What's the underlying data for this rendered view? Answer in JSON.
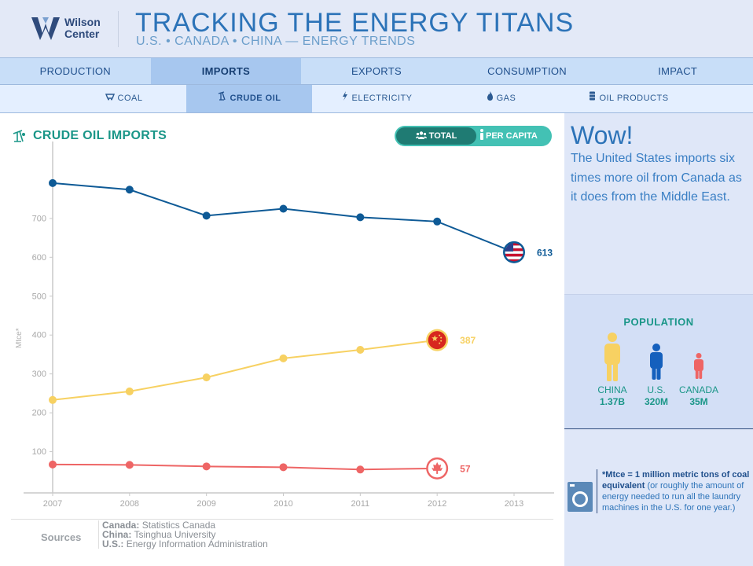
{
  "header": {
    "logo_line1": "Wilson",
    "logo_line2": "Center",
    "title": "TRACKING THE ENERGY TITANS",
    "subtitle": "U.S. • CANADA • CHINA — ENERGY TRENDS"
  },
  "nav": {
    "tabs": [
      "PRODUCTION",
      "IMPORTS",
      "EXPORTS",
      "CONSUMPTION",
      "IMPACT"
    ],
    "active_tab": "IMPORTS",
    "subtabs": [
      {
        "label": "COAL",
        "icon": "coal-cart-icon"
      },
      {
        "label": "CRUDE OIL",
        "icon": "oil-pump-icon"
      },
      {
        "label": "ELECTRICITY",
        "icon": "lightning-icon"
      },
      {
        "label": "GAS",
        "icon": "flame-icon"
      },
      {
        "label": "OIL PRODUCTS",
        "icon": "barrel-icon"
      }
    ],
    "active_subtab": "CRUDE OIL"
  },
  "chart_panel": {
    "title": "CRUDE OIL IMPORTS",
    "toggle_total": "TOTAL",
    "toggle_per_capita": "PER CAPITA"
  },
  "chart_data": {
    "type": "line",
    "title": "CRUDE OIL IMPORTS",
    "xlabel": "",
    "ylabel": "Mtce*",
    "x": [
      2007,
      2008,
      2009,
      2010,
      2011,
      2012,
      2013
    ],
    "y_ticks": [
      100,
      200,
      300,
      400,
      500,
      600,
      700
    ],
    "ylim": [
      0,
      800
    ],
    "series": [
      {
        "name": "U.S.",
        "color": "#0e5a96",
        "x": [
          2007,
          2008,
          2009,
          2010,
          2011,
          2012,
          2013
        ],
        "values": [
          791,
          774,
          707,
          725,
          703,
          692,
          613
        ],
        "end_label": "613",
        "end_icon": "us-flag-icon"
      },
      {
        "name": "China",
        "color": "#f7d162",
        "x": [
          2007,
          2008,
          2009,
          2010,
          2011,
          2012
        ],
        "values": [
          233,
          255,
          291,
          340,
          362,
          387
        ],
        "end_label": "387",
        "end_icon": "china-flag-icon"
      },
      {
        "name": "Canada",
        "color": "#ee6565",
        "x": [
          2007,
          2008,
          2009,
          2010,
          2011,
          2012
        ],
        "values": [
          67,
          66,
          62,
          60,
          54,
          57
        ],
        "end_label": "57",
        "end_icon": "canada-flag-icon"
      }
    ]
  },
  "sources": {
    "label": "Sources",
    "canada_key": "Canada:",
    "canada_val": "Statistics Canada",
    "china_key": "China:",
    "china_val": "Tsinghua University",
    "us_key": "U.S.:",
    "us_val": "Energy Information Administration"
  },
  "sidebar": {
    "wow_title": "Wow!",
    "wow_text": "The United States imports six times more oil from Canada as it does from the Middle East.",
    "population_title": "POPULATION",
    "population": [
      {
        "country": "CHINA",
        "value": "1.37B",
        "color": "#f7d162"
      },
      {
        "country": "U.S.",
        "value": "320M",
        "color": "#1560bd"
      },
      {
        "country": "CANADA",
        "value": "35M",
        "color": "#ee6565"
      }
    ],
    "footnote_bold": "*Mtce = 1 million metric tons of coal equivalent",
    "footnote_rest": " (or roughly the amount of energy needed to run all the laundry machines in the U.S. for one year.)"
  }
}
